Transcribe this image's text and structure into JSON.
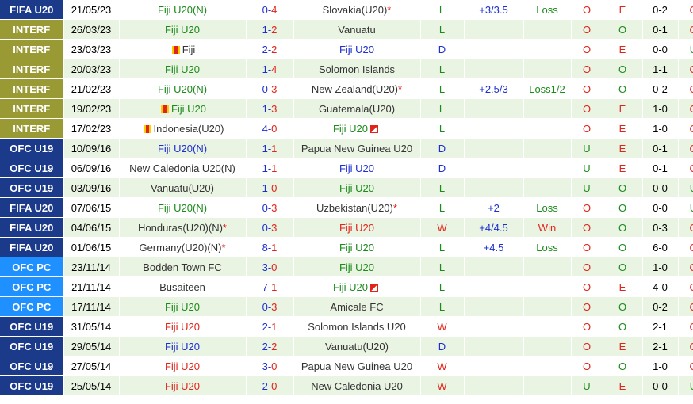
{
  "colors": {
    "FIFA U20": "#1b3a8a",
    "INTERF": "#9a9a35",
    "OFC U19": "#1b3a8a",
    "OFC PC": "#1e90ff"
  },
  "matches": [
    {
      "league": "FIFA U20",
      "date": "21/05/23",
      "home": "Fiji U20(N)",
      "home_color": "green",
      "home_star": false,
      "home_flag": "",
      "score_h": "0",
      "score_a": "4",
      "away": "Slovakia(U20)",
      "away_color": "grey",
      "away_star": true,
      "away_flag": "",
      "res": "L",
      "res_color": "green",
      "hcap": "+3/3.5",
      "hres": "Loss",
      "hres_color": "green",
      "ou1": "O",
      "ou1c": "red",
      "ou2": "E",
      "ou2c": "red",
      "ht": "0-2",
      "ou3": "O",
      "ou3c": "red"
    },
    {
      "league": "INTERF",
      "date": "26/03/23",
      "home": "Fiji U20",
      "home_color": "green",
      "home_star": false,
      "home_flag": "",
      "score_h": "1",
      "score_a": "2",
      "away": "Vanuatu",
      "away_color": "grey",
      "away_star": false,
      "away_flag": "",
      "res": "L",
      "res_color": "green",
      "hcap": "",
      "hres": "",
      "hres_color": "green",
      "ou1": "O",
      "ou1c": "red",
      "ou2": "O",
      "ou2c": "green",
      "ht": "0-1",
      "ou3": "O",
      "ou3c": "red"
    },
    {
      "league": "INTERF",
      "date": "23/03/23",
      "home": "Fiji",
      "home_color": "grey",
      "home_star": false,
      "home_flag": "full",
      "score_h": "2",
      "score_a": "2",
      "away": "Fiji U20",
      "away_color": "blue",
      "away_star": false,
      "away_flag": "",
      "res": "D",
      "res_color": "blue",
      "hcap": "",
      "hres": "",
      "hres_color": "green",
      "ou1": "O",
      "ou1c": "red",
      "ou2": "E",
      "ou2c": "red",
      "ht": "0-0",
      "ou3": "U",
      "ou3c": "green"
    },
    {
      "league": "INTERF",
      "date": "20/03/23",
      "home": "Fiji U20",
      "home_color": "green",
      "home_star": false,
      "home_flag": "",
      "score_h": "1",
      "score_a": "4",
      "away": "Solomon Islands",
      "away_color": "grey",
      "away_star": false,
      "away_flag": "",
      "res": "L",
      "res_color": "green",
      "hcap": "",
      "hres": "",
      "hres_color": "green",
      "ou1": "O",
      "ou1c": "red",
      "ou2": "O",
      "ou2c": "green",
      "ht": "1-1",
      "ou3": "O",
      "ou3c": "red"
    },
    {
      "league": "INTERF",
      "date": "21/02/23",
      "home": "Fiji U20(N)",
      "home_color": "green",
      "home_star": false,
      "home_flag": "",
      "score_h": "0",
      "score_a": "3",
      "away": "New Zealand(U20)",
      "away_color": "grey",
      "away_star": true,
      "away_flag": "",
      "res": "L",
      "res_color": "green",
      "hcap": "+2.5/3",
      "hres": "Loss1/2",
      "hres_color": "green",
      "ou1": "O",
      "ou1c": "red",
      "ou2": "O",
      "ou2c": "green",
      "ht": "0-2",
      "ou3": "O",
      "ou3c": "red"
    },
    {
      "league": "INTERF",
      "date": "19/02/23",
      "home": "Fiji U20",
      "home_color": "green",
      "home_star": false,
      "home_flag": "full",
      "score_h": "1",
      "score_a": "3",
      "away": "Guatemala(U20)",
      "away_color": "grey",
      "away_star": false,
      "away_flag": "",
      "res": "L",
      "res_color": "green",
      "hcap": "",
      "hres": "",
      "hres_color": "green",
      "ou1": "O",
      "ou1c": "red",
      "ou2": "E",
      "ou2c": "red",
      "ht": "1-0",
      "ou3": "O",
      "ou3c": "red"
    },
    {
      "league": "INTERF",
      "date": "17/02/23",
      "home": "Indonesia(U20)",
      "home_color": "grey",
      "home_star": false,
      "home_flag": "full",
      "score_h": "4",
      "score_a": "0",
      "away": "Fiji U20",
      "away_color": "green",
      "away_star": false,
      "away_flag": "half",
      "res": "L",
      "res_color": "green",
      "hcap": "",
      "hres": "",
      "hres_color": "green",
      "ou1": "O",
      "ou1c": "red",
      "ou2": "E",
      "ou2c": "red",
      "ht": "1-0",
      "ou3": "O",
      "ou3c": "red"
    },
    {
      "league": "OFC U19",
      "date": "10/09/16",
      "home": "Fiji U20(N)",
      "home_color": "blue",
      "home_star": false,
      "home_flag": "",
      "score_h": "1",
      "score_a": "1",
      "away": "Papua New Guinea U20",
      "away_color": "grey",
      "away_star": false,
      "away_flag": "",
      "res": "D",
      "res_color": "blue",
      "hcap": "",
      "hres": "",
      "hres_color": "green",
      "ou1": "U",
      "ou1c": "green",
      "ou2": "E",
      "ou2c": "red",
      "ht": "0-1",
      "ou3": "O",
      "ou3c": "red"
    },
    {
      "league": "OFC U19",
      "date": "06/09/16",
      "home": "New Caledonia U20(N)",
      "home_color": "grey",
      "home_star": false,
      "home_flag": "",
      "score_h": "1",
      "score_a": "1",
      "away": "Fiji U20",
      "away_color": "blue",
      "away_star": false,
      "away_flag": "",
      "res": "D",
      "res_color": "blue",
      "hcap": "",
      "hres": "",
      "hres_color": "green",
      "ou1": "U",
      "ou1c": "green",
      "ou2": "E",
      "ou2c": "red",
      "ht": "0-1",
      "ou3": "O",
      "ou3c": "red"
    },
    {
      "league": "OFC U19",
      "date": "03/09/16",
      "home": "Vanuatu(U20)",
      "home_color": "grey",
      "home_star": false,
      "home_flag": "",
      "score_h": "1",
      "score_a": "0",
      "away": "Fiji U20",
      "away_color": "green",
      "away_star": false,
      "away_flag": "",
      "res": "L",
      "res_color": "green",
      "hcap": "",
      "hres": "",
      "hres_color": "green",
      "ou1": "U",
      "ou1c": "green",
      "ou2": "O",
      "ou2c": "green",
      "ht": "0-0",
      "ou3": "U",
      "ou3c": "green"
    },
    {
      "league": "FIFA U20",
      "date": "07/06/15",
      "home": "Fiji U20(N)",
      "home_color": "green",
      "home_star": false,
      "home_flag": "",
      "score_h": "0",
      "score_a": "3",
      "away": "Uzbekistan(U20)",
      "away_color": "grey",
      "away_star": true,
      "away_flag": "",
      "res": "L",
      "res_color": "green",
      "hcap": "+2",
      "hres": "Loss",
      "hres_color": "green",
      "ou1": "O",
      "ou1c": "red",
      "ou2": "O",
      "ou2c": "green",
      "ht": "0-0",
      "ou3": "U",
      "ou3c": "green"
    },
    {
      "league": "FIFA U20",
      "date": "04/06/15",
      "home": "Honduras(U20)(N)",
      "home_color": "grey",
      "home_star": true,
      "home_flag": "",
      "score_h": "0",
      "score_a": "3",
      "away": "Fiji U20",
      "away_color": "red",
      "away_star": false,
      "away_flag": "",
      "res": "W",
      "res_color": "red",
      "hcap": "+4/4.5",
      "hres": "Win",
      "hres_color": "red",
      "ou1": "O",
      "ou1c": "red",
      "ou2": "O",
      "ou2c": "green",
      "ht": "0-3",
      "ou3": "O",
      "ou3c": "red"
    },
    {
      "league": "FIFA U20",
      "date": "01/06/15",
      "home": "Germany(U20)(N)",
      "home_color": "grey",
      "home_star": true,
      "home_flag": "",
      "score_h": "8",
      "score_a": "1",
      "away": "Fiji U20",
      "away_color": "green",
      "away_star": false,
      "away_flag": "",
      "res": "L",
      "res_color": "green",
      "hcap": "+4.5",
      "hres": "Loss",
      "hres_color": "green",
      "ou1": "O",
      "ou1c": "red",
      "ou2": "O",
      "ou2c": "green",
      "ht": "6-0",
      "ou3": "O",
      "ou3c": "red"
    },
    {
      "league": "OFC PC",
      "date": "23/11/14",
      "home": "Bodden Town FC",
      "home_color": "grey",
      "home_star": false,
      "home_flag": "",
      "score_h": "3",
      "score_a": "0",
      "away": "Fiji U20",
      "away_color": "green",
      "away_star": false,
      "away_flag": "",
      "res": "L",
      "res_color": "green",
      "hcap": "",
      "hres": "",
      "hres_color": "green",
      "ou1": "O",
      "ou1c": "red",
      "ou2": "O",
      "ou2c": "green",
      "ht": "1-0",
      "ou3": "O",
      "ou3c": "red"
    },
    {
      "league": "OFC PC",
      "date": "21/11/14",
      "home": "Busaiteen",
      "home_color": "grey",
      "home_star": false,
      "home_flag": "",
      "score_h": "7",
      "score_a": "1",
      "away": "Fiji U20",
      "away_color": "green",
      "away_star": false,
      "away_flag": "half",
      "res": "L",
      "res_color": "green",
      "hcap": "",
      "hres": "",
      "hres_color": "green",
      "ou1": "O",
      "ou1c": "red",
      "ou2": "E",
      "ou2c": "red",
      "ht": "4-0",
      "ou3": "O",
      "ou3c": "red"
    },
    {
      "league": "OFC PC",
      "date": "17/11/14",
      "home": "Fiji U20",
      "home_color": "green",
      "home_star": false,
      "home_flag": "",
      "score_h": "0",
      "score_a": "3",
      "away": "Amicale FC",
      "away_color": "grey",
      "away_star": false,
      "away_flag": "",
      "res": "L",
      "res_color": "green",
      "hcap": "",
      "hres": "",
      "hres_color": "green",
      "ou1": "O",
      "ou1c": "red",
      "ou2": "O",
      "ou2c": "green",
      "ht": "0-2",
      "ou3": "O",
      "ou3c": "red"
    },
    {
      "league": "OFC U19",
      "date": "31/05/14",
      "home": "Fiji U20",
      "home_color": "red",
      "home_star": false,
      "home_flag": "",
      "score_h": "2",
      "score_a": "1",
      "away": "Solomon Islands U20",
      "away_color": "grey",
      "away_star": false,
      "away_flag": "",
      "res": "W",
      "res_color": "red",
      "hcap": "",
      "hres": "",
      "hres_color": "green",
      "ou1": "O",
      "ou1c": "red",
      "ou2": "O",
      "ou2c": "green",
      "ht": "2-1",
      "ou3": "O",
      "ou3c": "red"
    },
    {
      "league": "OFC U19",
      "date": "29/05/14",
      "home": "Fiji U20",
      "home_color": "blue",
      "home_star": false,
      "home_flag": "",
      "score_h": "2",
      "score_a": "2",
      "away": "Vanuatu(U20)",
      "away_color": "grey",
      "away_star": false,
      "away_flag": "",
      "res": "D",
      "res_color": "blue",
      "hcap": "",
      "hres": "",
      "hres_color": "green",
      "ou1": "O",
      "ou1c": "red",
      "ou2": "E",
      "ou2c": "red",
      "ht": "2-1",
      "ou3": "O",
      "ou3c": "red"
    },
    {
      "league": "OFC U19",
      "date": "27/05/14",
      "home": "Fiji U20",
      "home_color": "red",
      "home_star": false,
      "home_flag": "",
      "score_h": "3",
      "score_a": "0",
      "away": "Papua New Guinea U20",
      "away_color": "grey",
      "away_star": false,
      "away_flag": "",
      "res": "W",
      "res_color": "red",
      "hcap": "",
      "hres": "",
      "hres_color": "green",
      "ou1": "O",
      "ou1c": "red",
      "ou2": "O",
      "ou2c": "green",
      "ht": "1-0",
      "ou3": "O",
      "ou3c": "red"
    },
    {
      "league": "OFC U19",
      "date": "25/05/14",
      "home": "Fiji U20",
      "home_color": "red",
      "home_star": false,
      "home_flag": "",
      "score_h": "2",
      "score_a": "0",
      "away": "New Caledonia U20",
      "away_color": "grey",
      "away_star": false,
      "away_flag": "",
      "res": "W",
      "res_color": "red",
      "hcap": "",
      "hres": "",
      "hres_color": "green",
      "ou1": "U",
      "ou1c": "green",
      "ou2": "E",
      "ou2c": "red",
      "ht": "0-0",
      "ou3": "U",
      "ou3c": "green"
    }
  ]
}
